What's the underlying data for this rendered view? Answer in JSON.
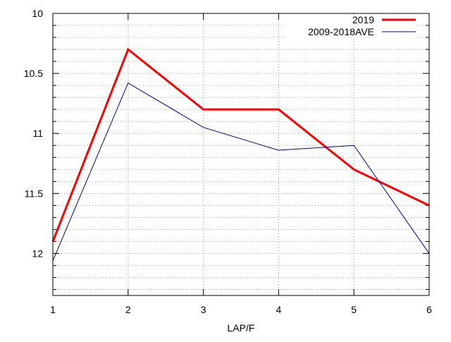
{
  "chart_data": {
    "type": "line",
    "title": "",
    "xlabel": "LAP/F",
    "ylabel": "",
    "x": [
      1,
      2,
      3,
      4,
      5,
      6
    ],
    "xlim": [
      1,
      6
    ],
    "ylim": [
      12.35,
      10
    ],
    "y_inverted": true,
    "x_ticks": [
      1,
      2,
      3,
      4,
      5,
      6
    ],
    "x_tick_labels": [
      "1",
      "2",
      "3",
      "4",
      "5",
      "6"
    ],
    "y_major_ticks": [
      10,
      10.5,
      11,
      11.5,
      12
    ],
    "y_major_tick_labels": [
      "10",
      "10.5",
      "11",
      "11.5",
      "12"
    ],
    "y_minor_step": 0.1,
    "grid": true,
    "grid_style": "dotted",
    "legend_position": "top-right",
    "series": [
      {
        "name": "2019",
        "color": "#ff0000",
        "values": [
          11.9,
          10.3,
          10.8,
          10.8,
          11.3,
          11.6
        ]
      },
      {
        "name": "2009-2018AVE",
        "color": "#00008b",
        "values": [
          12.06,
          10.58,
          10.95,
          11.14,
          11.1,
          12.0
        ]
      }
    ]
  }
}
